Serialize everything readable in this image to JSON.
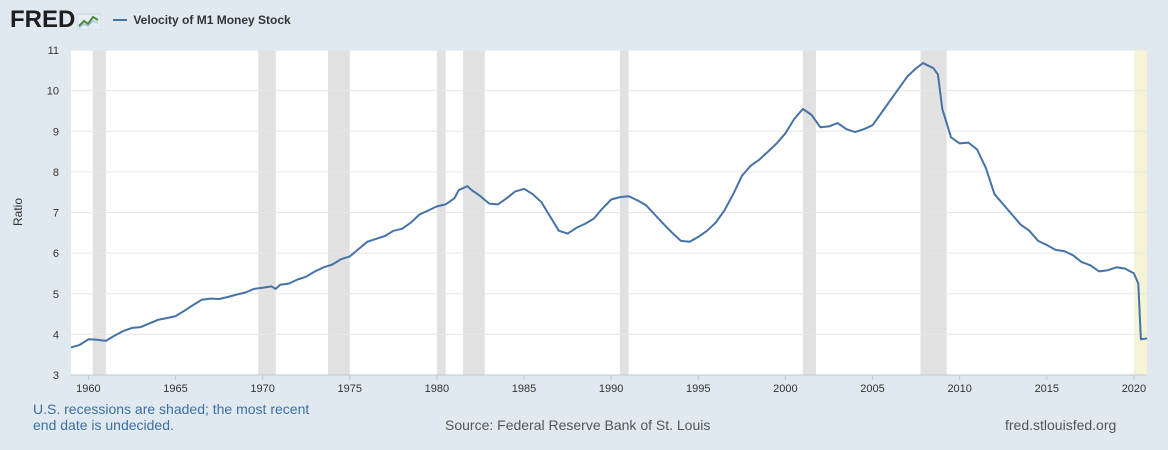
{
  "header": {
    "logo_text": "FRED",
    "logo_icon": "fred-chart-icon",
    "legend_label": "Velocity of M1 Money Stock"
  },
  "footer": {
    "recession_note": "U.S. recessions are shaded; the most recent end date is undecided.",
    "source": "Source: Federal Reserve Bank of St. Louis",
    "url": "fred.stlouisfed.org"
  },
  "colors": {
    "series": "#4572a7",
    "recession": "#e1e1e1",
    "undecided_recession": "#f6f4d6",
    "background": "#e1e9f0",
    "plot_background": "#ffffff"
  },
  "chart_data": {
    "type": "line",
    "title": "Velocity of M1 Money Stock",
    "xlabel": "",
    "ylabel": "Ratio",
    "xlim": [
      1959.0,
      2020.75
    ],
    "ylim": [
      3,
      11
    ],
    "yticks": [
      3,
      4,
      5,
      6,
      7,
      8,
      9,
      10,
      11
    ],
    "xticks": [
      1960,
      1965,
      1970,
      1975,
      1980,
      1985,
      1990,
      1995,
      2000,
      2005,
      2010,
      2015,
      2020
    ],
    "grid": true,
    "recessions": [
      [
        1960.25,
        1961.0
      ],
      [
        1969.75,
        1970.75
      ],
      [
        1973.75,
        1975.0
      ],
      [
        1980.0,
        1980.5
      ],
      [
        1981.5,
        1982.75
      ],
      [
        1990.5,
        1991.0
      ],
      [
        2001.0,
        2001.75
      ],
      [
        2007.75,
        2009.25
      ]
    ],
    "recession_undecided": [
      2020.0,
      2020.75
    ],
    "series": [
      {
        "name": "Velocity of M1 Money Stock",
        "points": [
          [
            1959.0,
            3.68
          ],
          [
            1959.5,
            3.74
          ],
          [
            1960.0,
            3.88
          ],
          [
            1960.5,
            3.87
          ],
          [
            1961.0,
            3.84
          ],
          [
            1961.5,
            3.97
          ],
          [
            1962.0,
            4.08
          ],
          [
            1962.5,
            4.16
          ],
          [
            1963.0,
            4.18
          ],
          [
            1963.5,
            4.27
          ],
          [
            1964.0,
            4.36
          ],
          [
            1964.5,
            4.4
          ],
          [
            1965.0,
            4.45
          ],
          [
            1965.5,
            4.58
          ],
          [
            1966.0,
            4.72
          ],
          [
            1966.5,
            4.85
          ],
          [
            1967.0,
            4.88
          ],
          [
            1967.5,
            4.87
          ],
          [
            1968.0,
            4.92
          ],
          [
            1968.5,
            4.98
          ],
          [
            1969.0,
            5.03
          ],
          [
            1969.5,
            5.12
          ],
          [
            1970.0,
            5.15
          ],
          [
            1970.5,
            5.18
          ],
          [
            1970.75,
            5.12
          ],
          [
            1971.0,
            5.22
          ],
          [
            1971.5,
            5.25
          ],
          [
            1972.0,
            5.35
          ],
          [
            1972.5,
            5.42
          ],
          [
            1973.0,
            5.55
          ],
          [
            1973.5,
            5.65
          ],
          [
            1974.0,
            5.72
          ],
          [
            1974.5,
            5.85
          ],
          [
            1975.0,
            5.92
          ],
          [
            1975.5,
            6.1
          ],
          [
            1976.0,
            6.28
          ],
          [
            1976.5,
            6.35
          ],
          [
            1977.0,
            6.42
          ],
          [
            1977.5,
            6.55
          ],
          [
            1978.0,
            6.6
          ],
          [
            1978.5,
            6.75
          ],
          [
            1979.0,
            6.95
          ],
          [
            1979.5,
            7.05
          ],
          [
            1980.0,
            7.15
          ],
          [
            1980.5,
            7.2
          ],
          [
            1981.0,
            7.35
          ],
          [
            1981.25,
            7.55
          ],
          [
            1981.75,
            7.65
          ],
          [
            1982.0,
            7.55
          ],
          [
            1982.5,
            7.4
          ],
          [
            1983.0,
            7.22
          ],
          [
            1983.5,
            7.2
          ],
          [
            1984.0,
            7.35
          ],
          [
            1984.5,
            7.52
          ],
          [
            1985.0,
            7.58
          ],
          [
            1985.5,
            7.45
          ],
          [
            1986.0,
            7.25
          ],
          [
            1986.5,
            6.9
          ],
          [
            1987.0,
            6.55
          ],
          [
            1987.5,
            6.48
          ],
          [
            1988.0,
            6.62
          ],
          [
            1988.5,
            6.72
          ],
          [
            1989.0,
            6.85
          ],
          [
            1989.5,
            7.1
          ],
          [
            1990.0,
            7.32
          ],
          [
            1990.5,
            7.38
          ],
          [
            1991.0,
            7.4
          ],
          [
            1991.5,
            7.3
          ],
          [
            1992.0,
            7.18
          ],
          [
            1992.5,
            6.95
          ],
          [
            1993.0,
            6.72
          ],
          [
            1993.5,
            6.5
          ],
          [
            1994.0,
            6.3
          ],
          [
            1994.5,
            6.28
          ],
          [
            1995.0,
            6.4
          ],
          [
            1995.5,
            6.55
          ],
          [
            1996.0,
            6.75
          ],
          [
            1996.5,
            7.05
          ],
          [
            1997.0,
            7.45
          ],
          [
            1997.5,
            7.9
          ],
          [
            1998.0,
            8.15
          ],
          [
            1998.5,
            8.3
          ],
          [
            1999.0,
            8.5
          ],
          [
            1999.5,
            8.7
          ],
          [
            2000.0,
            8.95
          ],
          [
            2000.5,
            9.3
          ],
          [
            2001.0,
            9.55
          ],
          [
            2001.5,
            9.4
          ],
          [
            2002.0,
            9.1
          ],
          [
            2002.5,
            9.12
          ],
          [
            2003.0,
            9.2
          ],
          [
            2003.5,
            9.05
          ],
          [
            2004.0,
            8.98
          ],
          [
            2004.5,
            9.05
          ],
          [
            2005.0,
            9.15
          ],
          [
            2005.5,
            9.45
          ],
          [
            2006.0,
            9.75
          ],
          [
            2006.5,
            10.05
          ],
          [
            2007.0,
            10.35
          ],
          [
            2007.5,
            10.55
          ],
          [
            2007.9,
            10.68
          ],
          [
            2008.5,
            10.55
          ],
          [
            2008.75,
            10.4
          ],
          [
            2009.0,
            9.55
          ],
          [
            2009.5,
            8.85
          ],
          [
            2010.0,
            8.7
          ],
          [
            2010.5,
            8.72
          ],
          [
            2011.0,
            8.55
          ],
          [
            2011.5,
            8.1
          ],
          [
            2012.0,
            7.45
          ],
          [
            2012.5,
            7.2
          ],
          [
            2013.0,
            6.95
          ],
          [
            2013.5,
            6.7
          ],
          [
            2014.0,
            6.55
          ],
          [
            2014.5,
            6.3
          ],
          [
            2015.0,
            6.2
          ],
          [
            2015.5,
            6.08
          ],
          [
            2016.0,
            6.05
          ],
          [
            2016.5,
            5.95
          ],
          [
            2017.0,
            5.78
          ],
          [
            2017.5,
            5.7
          ],
          [
            2018.0,
            5.55
          ],
          [
            2018.5,
            5.58
          ],
          [
            2019.0,
            5.65
          ],
          [
            2019.5,
            5.62
          ],
          [
            2020.0,
            5.5
          ],
          [
            2020.25,
            5.25
          ],
          [
            2020.4,
            3.88
          ],
          [
            2020.75,
            3.9
          ]
        ]
      }
    ]
  }
}
